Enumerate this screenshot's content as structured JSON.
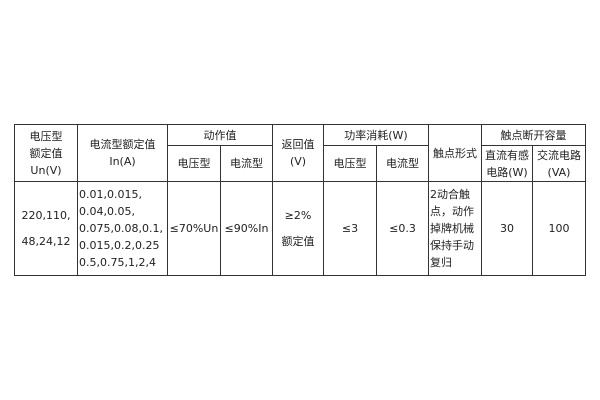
{
  "headers": {
    "rated_voltage": "电压型\n额定值\nUn(V)",
    "rated_current": "电流型额定值\nIn(A)",
    "action_value": "动作值",
    "action_voltage": "电压型",
    "action_current": "电流型",
    "return_value": "返回值\n(V)",
    "power": "功率消耗(W)",
    "power_voltage": "电压型",
    "power_current": "电流型",
    "contact_form": "触点形式",
    "breaking_capacity": "触点断开容量",
    "dc_inductive": "直流有感\n电路(W)",
    "ac_circuit": "交流电路\n(VA)"
  },
  "row": {
    "rated_voltage": "220,110,\n48,24,12",
    "rated_current": "0.01,0.015,\n0.04,0.05,\n0.075,0.08,0.1,\n0.015,0.2,0.25\n0.5,0.75,1,2,4",
    "action_voltage": "≤70%Un",
    "action_current": "≤90%In",
    "return_value": "≥2%\n额定值",
    "power_voltage": "≤3",
    "power_current": "≤0.3",
    "contact_form": "2动合触\n点，动作\n掉牌机械\n保持手动\n复归",
    "dc_inductive": "30",
    "ac_circuit": "100"
  }
}
